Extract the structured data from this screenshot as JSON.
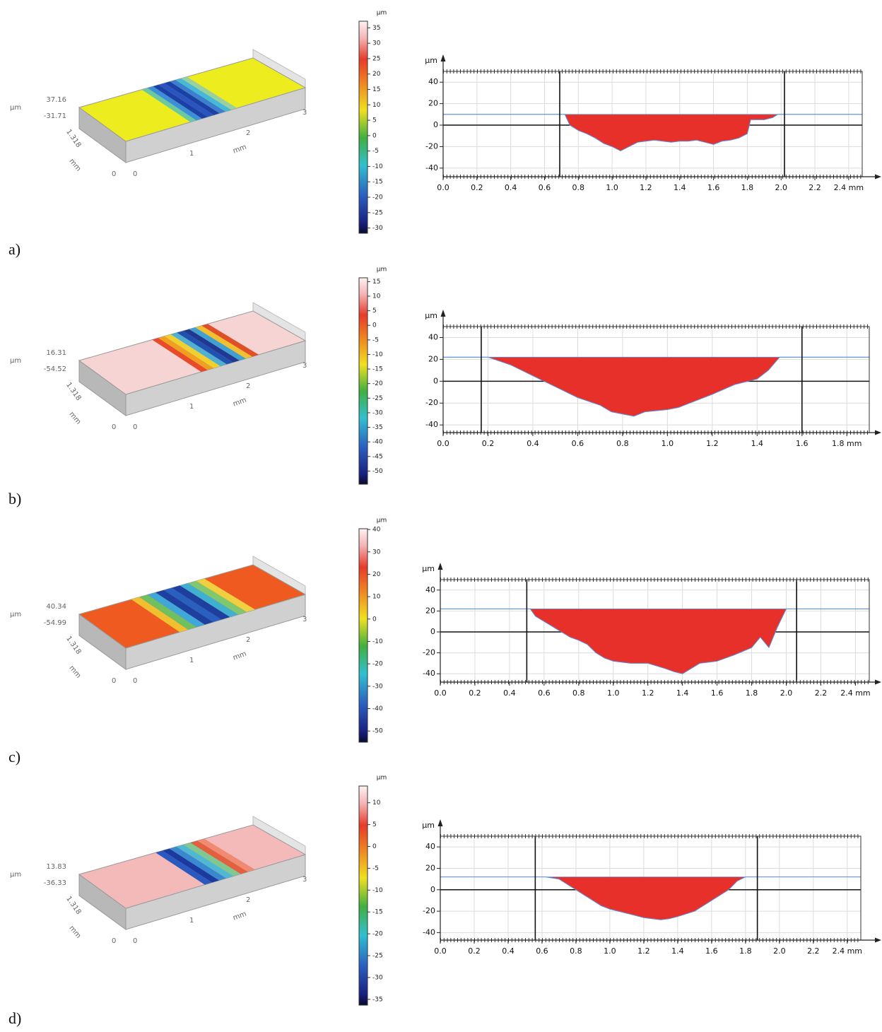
{
  "panels": [
    {
      "label": "a)",
      "surface": {
        "unit": "µm",
        "z_max": 37.16,
        "z_min": -31.71,
        "depth": 1.318,
        "width_unit": "mm",
        "width_ticks": [
          0
        ],
        "length_unit": "mm",
        "length_ticks": [
          0,
          1,
          2,
          3
        ]
      },
      "colorbar": {
        "unit": "µm",
        "ticks": [
          35,
          30,
          25,
          20,
          15,
          10,
          5,
          0,
          -5,
          -10,
          -15,
          -20,
          -25,
          -30
        ]
      }
    },
    {
      "label": "b)",
      "surface": {
        "unit": "µm",
        "z_max": 16.31,
        "z_min": -54.52,
        "depth": 1.318,
        "width_unit": "mm",
        "width_ticks": [
          0
        ],
        "length_unit": "mm",
        "length_ticks": [
          0,
          1,
          2,
          3
        ]
      },
      "colorbar": {
        "unit": "µm",
        "ticks": [
          15,
          10,
          5,
          0,
          -5,
          -10,
          -15,
          -20,
          -25,
          -30,
          -35,
          -40,
          -45,
          -50
        ]
      }
    },
    {
      "label": "c)",
      "surface": {
        "unit": "µm",
        "z_max": 40.34,
        "z_min": -54.99,
        "depth": 1.318,
        "width_unit": "mm",
        "width_ticks": [
          0
        ],
        "length_unit": "mm",
        "length_ticks": [
          0,
          1,
          2,
          3
        ]
      },
      "colorbar": {
        "unit": "µm",
        "ticks": [
          40,
          30,
          20,
          10,
          0,
          -10,
          -20,
          -30,
          -40,
          -50
        ]
      }
    },
    {
      "label": "d)",
      "surface": {
        "unit": "µm",
        "z_max": 13.83,
        "z_min": -36.33,
        "depth": 1.318,
        "width_unit": "mm",
        "width_ticks": [
          0
        ],
        "length_unit": "mm",
        "length_ticks": [
          0,
          1,
          2,
          3
        ]
      },
      "colorbar": {
        "unit": "µm",
        "ticks": [
          10,
          5,
          0,
          -5,
          -10,
          -15,
          -20,
          -25,
          -30,
          -35
        ]
      }
    }
  ],
  "chart_data": [
    {
      "type": "area",
      "ylabel": "µm",
      "xlim": [
        0,
        2.48
      ],
      "ylim": [
        -48,
        50
      ],
      "xticks": [
        {
          "value": 0,
          "label": "0.0"
        },
        0.2,
        0.4,
        0.6,
        0.8,
        {
          "value": 1,
          "label": "1.0"
        },
        1.2,
        1.4,
        1.6,
        1.8,
        {
          "value": 2,
          "label": "2.0"
        },
        2.2,
        {
          "value": 2.4,
          "label": "2.4 mm"
        }
      ],
      "yticks": [
        40,
        20,
        0,
        -20,
        -40
      ],
      "grid": true,
      "cursors": [
        0.69,
        2.02
      ],
      "reference": 10,
      "color": "#e8302a",
      "line_color": "#5b8ed8",
      "x": [
        0,
        0.7,
        0.72,
        0.75,
        0.8,
        0.85,
        0.9,
        0.95,
        1.0,
        1.05,
        1.1,
        1.15,
        1.2,
        1.25,
        1.3,
        1.35,
        1.4,
        1.45,
        1.5,
        1.55,
        1.6,
        1.65,
        1.7,
        1.75,
        1.8,
        1.82,
        1.9,
        1.95,
        1.98,
        2.48
      ],
      "values": [
        10,
        10,
        10,
        0,
        -5,
        -8,
        -12,
        -17,
        -20,
        -24,
        -20,
        -16,
        -15,
        -14,
        -15,
        -16,
        -15,
        -15,
        -14,
        -16,
        -18,
        -15,
        -14,
        -12,
        -8,
        5,
        5,
        7,
        10,
        10
      ]
    },
    {
      "type": "area",
      "ylabel": "µm",
      "xlim": [
        0,
        1.9
      ],
      "ylim": [
        -47,
        50
      ],
      "xticks": [
        {
          "value": 0,
          "label": "0.0"
        },
        0.2,
        0.4,
        0.6,
        0.8,
        {
          "value": 1,
          "label": "1.0"
        },
        1.2,
        1.4,
        1.6,
        {
          "value": 1.8,
          "label": "1.8 mm"
        }
      ],
      "yticks": [
        40,
        20,
        0,
        -20,
        -40
      ],
      "grid": true,
      "cursors": [
        0.17,
        1.6
      ],
      "reference": 22,
      "color": "#e8302a",
      "line_color": "#5b8ed8",
      "x": [
        0,
        0.2,
        0.3,
        0.4,
        0.5,
        0.6,
        0.7,
        0.75,
        0.8,
        0.85,
        0.9,
        1.0,
        1.05,
        1.1,
        1.2,
        1.3,
        1.4,
        1.45,
        1.5,
        1.9
      ],
      "values": [
        22,
        22,
        15,
        5,
        -5,
        -15,
        -22,
        -28,
        -30,
        -32,
        -28,
        -26,
        -24,
        -20,
        -12,
        -3,
        2,
        10,
        22,
        22
      ]
    },
    {
      "type": "area",
      "ylabel": "µm",
      "xlim": [
        0,
        2.48
      ],
      "ylim": [
        -48,
        50
      ],
      "xticks": [
        {
          "value": 0,
          "label": "0.0"
        },
        0.2,
        0.4,
        0.6,
        0.8,
        {
          "value": 1,
          "label": "1.0"
        },
        1.2,
        1.4,
        1.6,
        1.8,
        {
          "value": 2,
          "label": "2.0"
        },
        2.2,
        {
          "value": 2.4,
          "label": "2.4 mm"
        }
      ],
      "yticks": [
        40,
        20,
        0,
        -20,
        -40
      ],
      "grid": true,
      "cursors": [
        0.5,
        2.06
      ],
      "reference": 22,
      "color": "#e8302a",
      "line_color": "#5b8ed8",
      "x": [
        0,
        0.52,
        0.55,
        0.6,
        0.65,
        0.7,
        0.75,
        0.8,
        0.85,
        0.9,
        0.95,
        1.0,
        1.1,
        1.2,
        1.3,
        1.35,
        1.4,
        1.45,
        1.5,
        1.6,
        1.7,
        1.8,
        1.85,
        1.9,
        1.95,
        2.0,
        2.48
      ],
      "values": [
        22,
        22,
        15,
        10,
        5,
        0,
        -5,
        -8,
        -12,
        -20,
        -25,
        -28,
        -30,
        -30,
        -35,
        -38,
        -40,
        -35,
        -30,
        -28,
        -22,
        -15,
        -5,
        -15,
        5,
        22,
        22
      ]
    },
    {
      "type": "area",
      "ylabel": "µm",
      "xlim": [
        0,
        2.48
      ],
      "ylim": [
        -47,
        50
      ],
      "xticks": [
        {
          "value": 0,
          "label": "0.0"
        },
        0.2,
        0.4,
        0.6,
        0.8,
        {
          "value": 1,
          "label": "1.0"
        },
        1.2,
        1.4,
        1.6,
        1.8,
        {
          "value": 2,
          "label": "2.0"
        },
        2.2,
        {
          "value": 2.4,
          "label": "2.4 mm"
        }
      ],
      "yticks": [
        40,
        20,
        0,
        -20,
        -40
      ],
      "grid": true,
      "cursors": [
        0.56,
        1.87
      ],
      "reference": 12,
      "color": "#e8302a",
      "line_color": "#5b8ed8",
      "x": [
        0,
        0.62,
        0.7,
        0.75,
        0.8,
        0.85,
        0.9,
        0.95,
        1.0,
        1.1,
        1.2,
        1.3,
        1.35,
        1.4,
        1.5,
        1.6,
        1.7,
        1.75,
        1.8,
        2.48
      ],
      "values": [
        12,
        12,
        10,
        5,
        0,
        -5,
        -10,
        -15,
        -18,
        -22,
        -26,
        -28,
        -27,
        -25,
        -20,
        -10,
        0,
        8,
        12,
        12
      ]
    }
  ]
}
